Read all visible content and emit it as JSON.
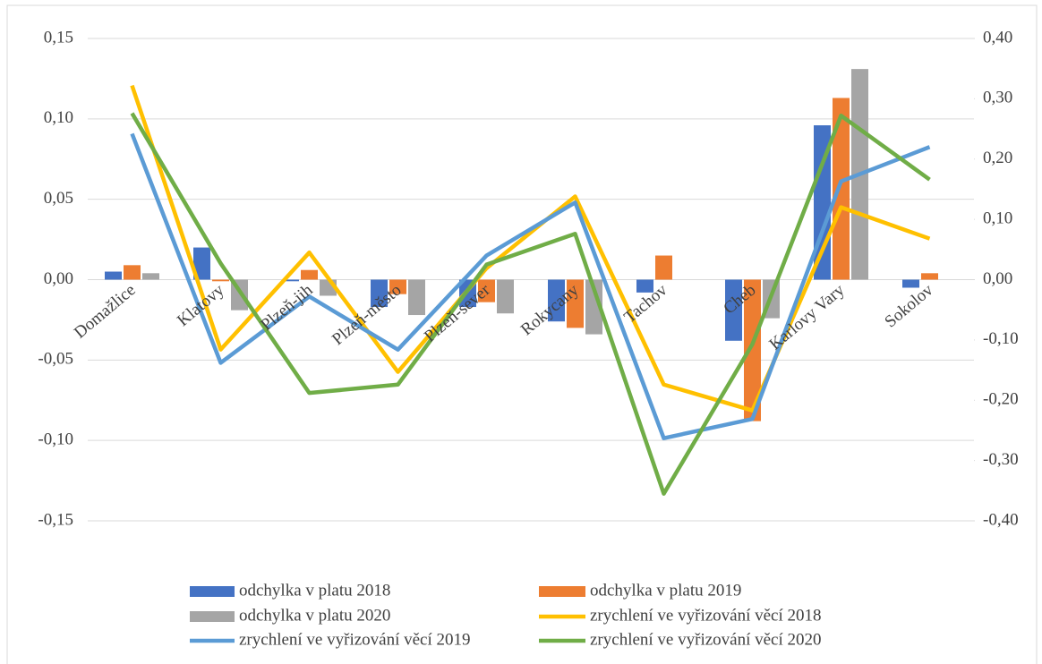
{
  "chart_data": {
    "type": "bar-line",
    "categories": [
      "Domažlice",
      "Klatovy",
      "Plzeň-jih",
      "Plzeň-město",
      "Plzeň-sever",
      "Rokycany",
      "Tachov",
      "Cheb",
      "Karlovy Vary",
      "Sokolov"
    ],
    "series": [
      {
        "name": "odchylka v platu 2018",
        "color": "#4472c4",
        "kind": "bar",
        "values": [
          0.005,
          0.02,
          -0.001,
          -0.017,
          -0.017,
          -0.026,
          -0.008,
          -0.038,
          0.096,
          -0.005
        ]
      },
      {
        "name": "odchylka v platu 2019",
        "color": "#ed7d31",
        "kind": "bar",
        "values": [
          0.009,
          -0.001,
          0.006,
          -0.009,
          -0.014,
          -0.03,
          0.015,
          -0.088,
          0.113,
          0.004
        ]
      },
      {
        "name": "odchylka v platu 2020",
        "color": "#a5a5a5",
        "kind": "bar",
        "values": [
          0.004,
          -0.019,
          -0.01,
          -0.022,
          -0.021,
          -0.034,
          0,
          -0.024,
          0.131,
          0
        ]
      },
      {
        "name": "zrychlení ve vyřizování věcí 2018",
        "color": "#ffc000",
        "kind": "line",
        "axis": "y2",
        "values": [
          0.322,
          -0.116,
          0.045,
          -0.153,
          0.019,
          0.138,
          -0.174,
          -0.217,
          0.12,
          0.068
        ]
      },
      {
        "name": "zrychlení ve vyřizování věcí 2019",
        "color": "#5b9bd5",
        "kind": "line",
        "axis": "y2",
        "values": [
          0.242,
          -0.138,
          -0.028,
          -0.116,
          0.04,
          0.128,
          -0.263,
          -0.231,
          0.163,
          0.22
        ]
      },
      {
        "name": "zrychlení ve vyřizování věcí 2020",
        "color": "#70ad47",
        "kind": "line",
        "axis": "y2",
        "values": [
          0.276,
          0.027,
          -0.188,
          -0.174,
          0.025,
          0.076,
          -0.355,
          -0.107,
          0.272,
          0.166
        ]
      }
    ],
    "ylim": [
      -0.15,
      0.15
    ],
    "yticks": [
      {
        "value": -0.15,
        "label": "-0,15"
      },
      {
        "value": -0.1,
        "label": "-0,10"
      },
      {
        "value": -0.05,
        "label": "-0,05"
      },
      {
        "value": 0,
        "label": "0,00"
      },
      {
        "value": 0.05,
        "label": "0,05"
      },
      {
        "value": 0.1,
        "label": "0,10"
      },
      {
        "value": 0.15,
        "label": "0,15"
      }
    ],
    "y2lim": [
      -0.4,
      0.4
    ],
    "y2ticks": [
      {
        "value": -0.4,
        "label": "-0,40"
      },
      {
        "value": -0.3,
        "label": "-0,30"
      },
      {
        "value": -0.2,
        "label": "-0,20"
      },
      {
        "value": -0.1,
        "label": "-0,10"
      },
      {
        "value": 0,
        "label": "0,00"
      },
      {
        "value": 0.1,
        "label": "0,10"
      },
      {
        "value": 0.2,
        "label": "0,20"
      },
      {
        "value": 0.3,
        "label": "0,30"
      },
      {
        "value": 0.4,
        "label": "0,40"
      }
    ],
    "grid": true,
    "legend": "bottom"
  }
}
